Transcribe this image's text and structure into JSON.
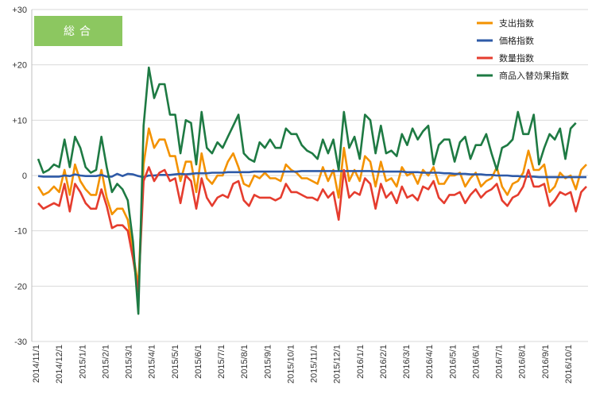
{
  "chart_data": {
    "type": "line",
    "title": "総合",
    "title_box_color": "#8cc760",
    "ylim": [
      -30,
      30
    ],
    "yticks": [
      {
        "value": 30,
        "label": "+30"
      },
      {
        "value": 20,
        "label": "+20"
      },
      {
        "value": 10,
        "label": "+10"
      },
      {
        "value": 0,
        "label": "0"
      },
      {
        "value": -10,
        "label": "-10"
      },
      {
        "value": -20,
        "label": "-20"
      },
      {
        "value": -30,
        "label": "-30"
      }
    ],
    "xticks": [
      "2014/11/1",
      "2014/12/1",
      "2015/1/1",
      "2015/2/1",
      "2015/3/1",
      "2015/4/1",
      "2015/5/1",
      "2015/6/1",
      "2015/7/1",
      "2015/8/1",
      "2015/9/1",
      "2015/10/1",
      "2015/11/1",
      "2015/12/1",
      "2016/1/1",
      "2016/2/1",
      "2016/3/1",
      "2016/4/1",
      "2016/5/1",
      "2016/6/1",
      "2016/7/1",
      "2016/8/1",
      "2016/9/1",
      "2016/10/1"
    ],
    "x_step": "1 week",
    "grid": "horizontal",
    "legend_position": "top-right",
    "series": [
      {
        "name": "支出指数",
        "color": "#f39200",
        "values": [
          -2,
          -3.5,
          -3,
          -2,
          -3,
          1,
          -3.5,
          2,
          -1,
          -2.5,
          -3.5,
          -3.5,
          1,
          -4,
          -7,
          -6,
          -6,
          -8,
          -14,
          -20,
          2,
          8.5,
          5,
          6.5,
          6.5,
          3.5,
          3.5,
          -1,
          2.5,
          2.5,
          -3,
          4,
          -0.5,
          -1.5,
          0,
          0,
          2.5,
          4,
          1.5,
          -1.5,
          -2,
          0,
          -0.5,
          0.5,
          -0.5,
          -0.5,
          -1,
          2,
          1,
          0.5,
          -0.5,
          -0.5,
          -1,
          -1.5,
          1.5,
          -1,
          1,
          -4,
          5,
          -1,
          1,
          -1,
          3.5,
          2.5,
          -2,
          2.5,
          -1,
          -0.5,
          -2,
          1.5,
          0,
          0.5,
          -1.5,
          1,
          0,
          1.5,
          -1.5,
          -1.5,
          0,
          0,
          0.5,
          -2,
          -0.5,
          0.5,
          -2,
          -1,
          -0.5,
          1.5,
          -2,
          -3.5,
          -1.5,
          -1,
          0.5,
          4.5,
          1,
          1,
          2,
          -3,
          -2,
          0.5,
          -0.5,
          0,
          -2.5,
          1,
          2
        ]
      },
      {
        "name": "価格指数",
        "color": "#2e5aa7",
        "values": [
          -0.1,
          -0.2,
          -0.2,
          -0.2,
          -0.2,
          0,
          -0.1,
          0.2,
          0,
          -0.1,
          -0.1,
          -0.1,
          0.1,
          -0.2,
          -0.2,
          0.3,
          -0.1,
          0.3,
          0.2,
          -0.1,
          -0.3,
          0,
          0,
          0.1,
          0.1,
          0.1,
          0.2,
          0.3,
          0.2,
          0.3,
          0.4,
          0.4,
          0.4,
          0.5,
          0.5,
          0.5,
          0.6,
          0.6,
          0.6,
          0.6,
          0.6,
          0.7,
          0.7,
          0.7,
          0.7,
          0.7,
          0.7,
          0.7,
          0.7,
          0.7,
          0.8,
          0.8,
          0.8,
          0.8,
          0.8,
          0.8,
          0.8,
          0.8,
          0.8,
          0.8,
          0.8,
          0.8,
          0.8,
          0.8,
          0.7,
          0.7,
          0.7,
          0.7,
          0.7,
          0.7,
          0.6,
          0.6,
          0.6,
          0.5,
          0.5,
          0.5,
          0.5,
          0.4,
          0.4,
          0.3,
          0.3,
          0.3,
          0.2,
          0.2,
          0.2,
          0.1,
          0.1,
          0,
          0,
          0,
          -0.1,
          -0.1,
          -0.2,
          -0.2,
          -0.2,
          -0.3,
          -0.3,
          -0.3,
          -0.3,
          -0.3,
          -0.3,
          -0.3,
          -0.3,
          -0.3,
          -0.3
        ]
      },
      {
        "name": "数量指数",
        "color": "#e53c2e",
        "values": [
          -5,
          -6,
          -5.5,
          -5,
          -5.5,
          -1.5,
          -6.5,
          -1.5,
          -3,
          -5,
          -6,
          -6,
          -2.5,
          -5.5,
          -9.5,
          -9,
          -9,
          -10,
          -15,
          -21,
          -1,
          1.5,
          -1,
          0.5,
          1,
          -1,
          -0.5,
          -5,
          0,
          -1,
          -6,
          -0.5,
          -4,
          -5.5,
          -4,
          -3.5,
          -4,
          -1.5,
          -1,
          -4.5,
          -5.5,
          -3.5,
          -4,
          -4,
          -4,
          -4.5,
          -4,
          -1.5,
          -3,
          -3,
          -3.5,
          -4,
          -4,
          -4.5,
          -2.5,
          -4,
          -3,
          -8,
          1,
          -4,
          -3,
          -3.5,
          -0.5,
          -1.5,
          -6,
          -1.5,
          -4,
          -3,
          -5,
          -2,
          -4,
          -3.5,
          -4.5,
          -2,
          -2.5,
          -1,
          -4,
          -5,
          -3.5,
          -3.5,
          -3,
          -5,
          -3.5,
          -2.5,
          -4,
          -3,
          -2.5,
          -1.5,
          -4.5,
          -5.5,
          -4,
          -3.5,
          -2,
          1,
          -2,
          -2,
          -1.5,
          -5.5,
          -4.5,
          -3,
          -3.5,
          -3,
          -6.5,
          -3,
          -2
        ]
      },
      {
        "name": "商品入替効果指数",
        "color": "#1e7a43",
        "values": [
          3,
          0.5,
          1,
          2,
          1.5,
          6.5,
          1.5,
          7,
          5,
          1.5,
          0.5,
          1,
          7,
          1.5,
          -3,
          -1.5,
          -2.5,
          -4.5,
          -12,
          -25,
          9,
          19.5,
          14,
          16.5,
          16.5,
          11,
          11,
          4,
          10,
          9.5,
          2,
          11.5,
          5,
          4,
          6,
          5,
          7,
          9,
          11,
          4,
          3,
          2.5,
          6,
          5,
          6.5,
          5,
          5,
          8.5,
          7.5,
          7.5,
          5.5,
          4.5,
          4,
          3,
          6.5,
          4,
          6.5,
          1,
          11.5,
          5,
          7,
          3,
          11,
          10,
          4,
          9,
          4,
          4.5,
          3.5,
          7.5,
          5.5,
          8.5,
          6.5,
          8,
          9,
          2,
          5.5,
          6.5,
          6.5,
          2.5,
          6,
          7,
          3,
          5.5,
          5.5,
          7.5,
          4,
          1,
          5,
          5.5,
          6.5,
          11.5,
          7.5,
          7.5,
          11,
          2,
          5,
          7.5,
          6.5,
          8.5,
          3,
          8.5,
          9.5
        ]
      }
    ]
  }
}
